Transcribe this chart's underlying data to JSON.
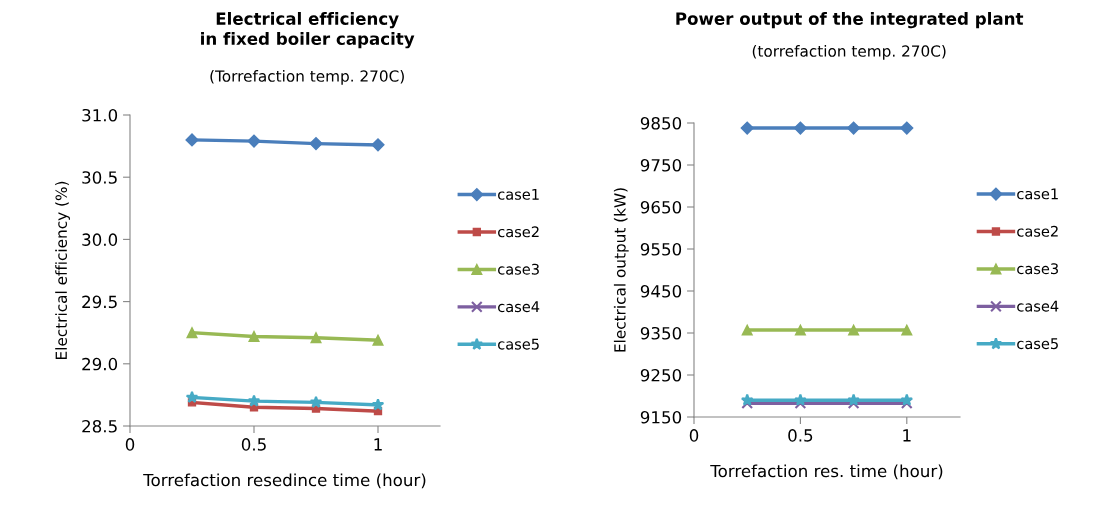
{
  "chart_data": [
    {
      "type": "line",
      "title": "Electrical efficiency\nin fixed boiler capacity",
      "subtitle": "(Torrefaction temp. 270C)",
      "xlabel": "Torrefaction resedince time (hour)",
      "ylabel": "Electrical efficiency (%)",
      "x": [
        0.25,
        0.5,
        0.75,
        1
      ],
      "xlim": [
        0,
        1.25
      ],
      "xticks": [
        0,
        {
          "value": 0.5,
          "label": "0.5"
        },
        1
      ],
      "ylim": [
        28.5,
        31.0
      ],
      "yticks": [
        {
          "value": 28.5,
          "label": "28.5"
        },
        {
          "value": 29.0,
          "label": "29.0"
        },
        {
          "value": 29.5,
          "label": "29.5"
        },
        {
          "value": 30.0,
          "label": "30.0"
        },
        {
          "value": 30.5,
          "label": "30.5"
        },
        {
          "value": 31.0,
          "label": "31.0"
        }
      ],
      "grid": false,
      "legend": "right",
      "line_style": "solid",
      "series": [
        {
          "name": "case1",
          "color": "#4a7ebb",
          "marker": "diamond",
          "values": [
            30.8,
            30.79,
            30.77,
            30.76
          ]
        },
        {
          "name": "case2",
          "color": "#be4b48",
          "marker": "square",
          "values": [
            28.69,
            28.65,
            28.64,
            28.62
          ]
        },
        {
          "name": "case3",
          "color": "#98b954",
          "marker": "triangle",
          "values": [
            29.25,
            29.22,
            29.21,
            29.19
          ]
        },
        {
          "name": "case4",
          "color": "#7d5fa0",
          "marker": "cross",
          "values": [
            null,
            null,
            null,
            null
          ]
        },
        {
          "name": "case5",
          "color": "#46aac5",
          "marker": "star",
          "values": [
            28.73,
            28.7,
            28.69,
            28.67
          ]
        }
      ]
    },
    {
      "type": "line",
      "title": "Power output of the integrated plant",
      "subtitle": "(torrefaction temp. 270C)",
      "xlabel": "Torrefaction res. time (hour)",
      "ylabel": "Electrical output (kW)",
      "x": [
        0.25,
        0.5,
        0.75,
        1
      ],
      "xlim": [
        0,
        1.25
      ],
      "xticks": [
        0,
        {
          "value": 0.5,
          "label": "0.5"
        },
        1
      ],
      "ylim": [
        9150,
        9850
      ],
      "yticks": [
        9150,
        9250,
        9350,
        9450,
        9550,
        9650,
        9750,
        9850
      ],
      "grid": false,
      "legend": "right",
      "line_style": "solid",
      "series": [
        {
          "name": "case1",
          "color": "#4a7ebb",
          "marker": "diamond",
          "values": [
            9838,
            9838,
            9838,
            9838
          ]
        },
        {
          "name": "case2",
          "color": "#be4b48",
          "marker": "square",
          "values": [
            null,
            null,
            null,
            null
          ]
        },
        {
          "name": "case3",
          "color": "#98b954",
          "marker": "triangle",
          "values": [
            9357,
            9357,
            9357,
            9357
          ]
        },
        {
          "name": "case4",
          "color": "#7d5fa0",
          "marker": "cross",
          "values": [
            9183,
            9183,
            9183,
            9183
          ]
        },
        {
          "name": "case5",
          "color": "#46aac5",
          "marker": "star",
          "values": [
            9190,
            9190,
            9190,
            9190
          ]
        }
      ]
    }
  ]
}
